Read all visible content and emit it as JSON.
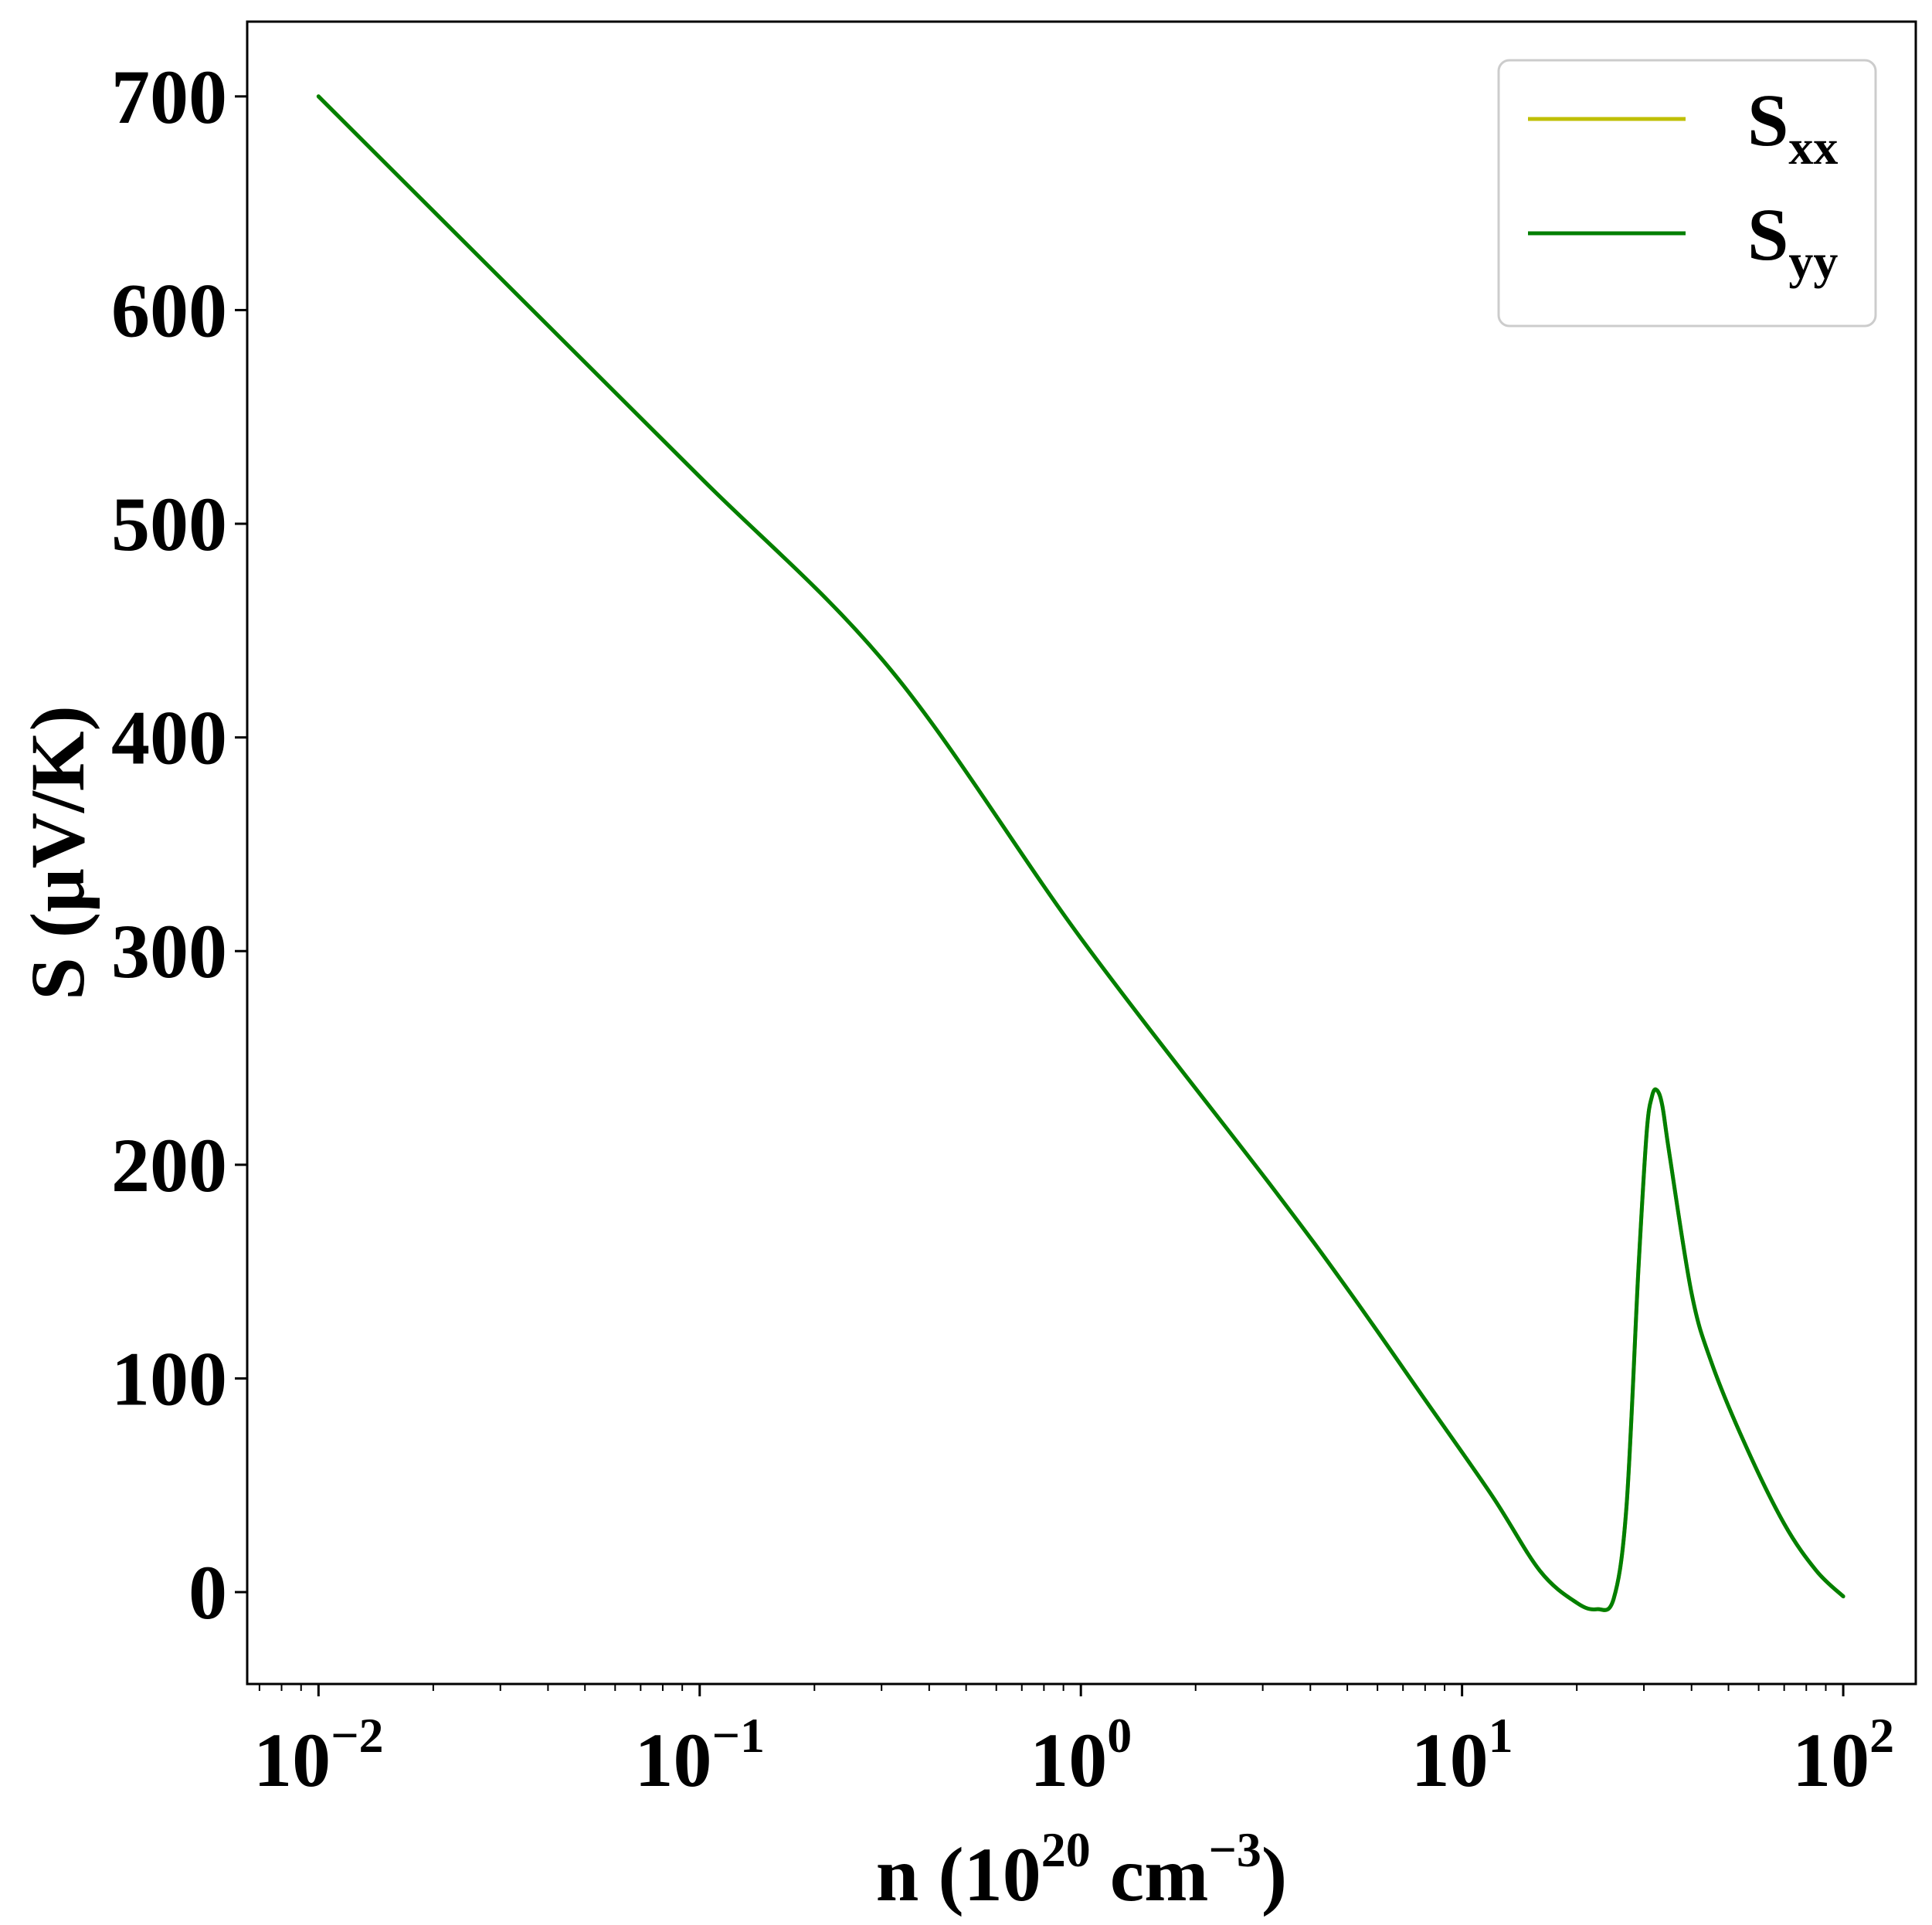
{
  "chart_data": {
    "type": "line",
    "xscale": "log",
    "xlim": [
      0.0065,
      155
    ],
    "ylim": [
      -43,
      735
    ],
    "xlabel": {
      "base": "n (10",
      "sup1": "20",
      "mid": " cm",
      "sup2": "−3",
      "end": ")"
    },
    "ylabel": "S (μV/K)",
    "x_ticks": [
      {
        "value": 0.01,
        "base": "10",
        "exp": "−2"
      },
      {
        "value": 0.1,
        "base": "10",
        "exp": "−1"
      },
      {
        "value": 1,
        "base": "10",
        "exp": "0"
      },
      {
        "value": 10,
        "base": "10",
        "exp": "1"
      },
      {
        "value": 100,
        "base": "10",
        "exp": "2"
      }
    ],
    "y_ticks": [
      {
        "value": 0,
        "label": "0"
      },
      {
        "value": 100,
        "label": "100"
      },
      {
        "value": 200,
        "label": "200"
      },
      {
        "value": 300,
        "label": "300"
      },
      {
        "value": 400,
        "label": "400"
      },
      {
        "value": 500,
        "label": "500"
      },
      {
        "value": 600,
        "label": "600"
      },
      {
        "value": 700,
        "label": "700"
      }
    ],
    "grid": false,
    "legend_position": "top-right",
    "series": [
      {
        "name": "S",
        "sub": "xx",
        "color": "#bfbf00",
        "x": [
          0.01,
          0.0316,
          0.1,
          0.316,
          1,
          3.16,
          5,
          8,
          12,
          16,
          20,
          22.6,
          25,
          27,
          29,
          30.5,
          31.5,
          32.4,
          33.5,
          35,
          40,
          45,
          55,
          70,
          85,
          100
        ],
        "y": [
          700,
          611,
          522,
          432,
          306,
          190,
          142,
          90,
          45,
          10,
          -5,
          -8,
          -3,
          40,
          150,
          215,
          232,
          235,
          228,
          205,
          140,
          108,
          70,
          32,
          10,
          -2
        ]
      },
      {
        "name": "S",
        "sub": "yy",
        "color": "#007f00",
        "x": [
          0.01,
          0.0316,
          0.1,
          0.316,
          1,
          3.16,
          5,
          8,
          12,
          16,
          20,
          22.6,
          25,
          27,
          29,
          30.5,
          31.5,
          32.4,
          33.5,
          35,
          40,
          45,
          55,
          70,
          85,
          100
        ],
        "y": [
          700,
          611,
          522,
          432,
          306,
          190,
          142,
          90,
          45,
          10,
          -5,
          -8,
          -3,
          40,
          150,
          215,
          232,
          235,
          228,
          205,
          140,
          108,
          70,
          32,
          10,
          -2
        ]
      }
    ]
  }
}
